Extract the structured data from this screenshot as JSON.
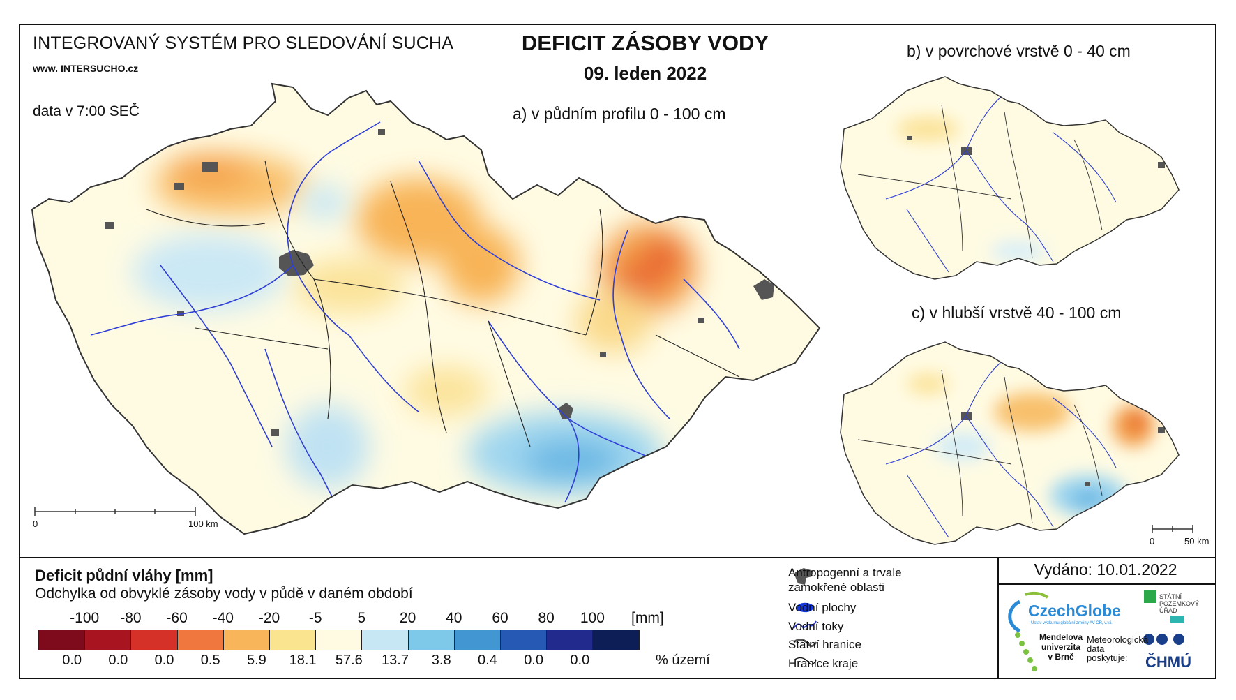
{
  "header": {
    "system_title": "INTEGROVANÝ SYSTÉM PRO SLEDOVÁNÍ SUCHA",
    "url_prefix": "www.",
    "url_brand_a": "INTER",
    "url_brand_b": "SUCHO",
    "url_suffix": ".cz",
    "data_time": "data v 7:00 SEČ",
    "main_title": "DEFICIT ZÁSOBY VODY",
    "date": "09. leden 2022"
  },
  "maps": {
    "a": {
      "label": "a) v půdním profilu 0 - 100 cm",
      "scale_zero": "0",
      "scale_end": "100 km"
    },
    "b": {
      "label": "b) v povrchové vrstvě 0 - 40 cm"
    },
    "c": {
      "label": "c) v hlubší vrstvě 40 - 100 cm",
      "scale_zero": "0",
      "scale_end": "50 km"
    }
  },
  "legend": {
    "title": "Deficit půdní vláhy  [mm]",
    "subtitle": "Odchylka od obvyklé zásoby vody v půdě v daném období",
    "unit": "[mm]",
    "ticks": [
      "-100",
      "-80",
      "-60",
      "-40",
      "-20",
      "-5",
      "5",
      "20",
      "40",
      "60",
      "80",
      "100"
    ],
    "colors": [
      "#7d0b1c",
      "#a8141f",
      "#d53129",
      "#f0783e",
      "#f9b55a",
      "#fbe48f",
      "#fffbe3",
      "#c8e7f4",
      "#7ec8ea",
      "#4297d3",
      "#2559b3",
      "#232a8e",
      "#0d1d55"
    ],
    "percents": [
      "0.0",
      "0.0",
      "0.0",
      "0.5",
      "5.9",
      "18.1",
      "57.6",
      "13.7",
      "3.8",
      "0.4",
      "0.0",
      "0.0"
    ],
    "percent_label": "% území"
  },
  "symbols": {
    "anthropogenic_1": "Antropogenní a trvale",
    "anthropogenic_2": "zamokřené oblasti",
    "water_bodies": "Vodní plochy",
    "rivers": "Vodní toky",
    "state_border": "Státní hranice",
    "region_border": "Hranice kraje"
  },
  "issued": "Vydáno: 10.01.2022",
  "logos": {
    "czechglobe": "CzechGlobe",
    "czechglobe_sub": "Ústav výzkumu globální změny AV ČR, v.v.i.",
    "spu_1": "STÁTNÍ",
    "spu_2": "POZEMKOVÝ",
    "spu_3": "ÚŘAD",
    "mendel_1": "Mendelova",
    "mendel_2": "univerzita",
    "mendel_3": "v Brně",
    "meteo_1": "Meteorologická",
    "meteo_2": "data",
    "meteo_3": "poskytuje:",
    "chmu": "ČHMÚ"
  }
}
